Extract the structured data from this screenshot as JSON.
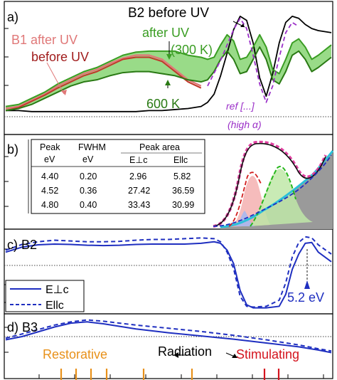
{
  "chart_data": [
    {
      "panel": "a)",
      "type": "line",
      "labels": {
        "b2_before": "B2 before UV",
        "b1_after": "B1 after UV",
        "before": "before UV",
        "after": "after UV",
        "t300": "(300 K)",
        "t600": "600 K",
        "ref": "ref [...]",
        "high_alpha": "(high α)"
      },
      "series": [
        {
          "color": "#000000",
          "x": [
            0,
            0.04,
            0.08,
            0.12,
            0.16,
            0.2,
            0.24,
            0.28,
            0.32,
            0.36,
            0.4,
            0.44,
            0.48,
            0.52,
            0.56,
            0.6,
            0.62,
            0.64,
            0.66,
            0.68,
            0.7,
            0.72,
            0.74,
            0.76,
            0.78,
            0.8,
            0.82,
            0.84,
            0.86,
            0.88,
            0.9,
            0.92,
            0.94,
            0.96,
            1
          ],
          "y": [
            0.06,
            0.06,
            0.05,
            0.05,
            0.05,
            0.05,
            0.05,
            0.05,
            0.05,
            0.05,
            0.05,
            0.06,
            0.06,
            0.07,
            0.08,
            0.1,
            0.14,
            0.22,
            0.4,
            0.62,
            0.85,
            0.98,
            0.94,
            0.72,
            0.38,
            0.2,
            0.42,
            0.72,
            0.92,
            0.98,
            0.96,
            0.9,
            0.86,
            0.84,
            0.82
          ]
        },
        {
          "color": "#e07878",
          "x": [
            0,
            0.04,
            0.08,
            0.12,
            0.16,
            0.2,
            0.24,
            0.28,
            0.32,
            0.36,
            0.4,
            0.44,
            0.48,
            0.52,
            0.56,
            0.6
          ],
          "y": [
            0.08,
            0.1,
            0.16,
            0.22,
            0.3,
            0.36,
            0.42,
            0.46,
            0.52,
            0.57,
            0.6,
            0.6,
            0.56,
            0.46,
            0.36,
            0.3
          ]
        },
        {
          "color": "#c0392b",
          "x": [
            0,
            0.04,
            0.08,
            0.12,
            0.16,
            0.2,
            0.24,
            0.28,
            0.32,
            0.36,
            0.4,
            0.44,
            0.48,
            0.52,
            0.56,
            0.6
          ],
          "y": [
            0.06,
            0.09,
            0.15,
            0.21,
            0.28,
            0.34,
            0.4,
            0.44,
            0.5,
            0.56,
            0.58,
            0.58,
            0.54,
            0.44,
            0.34,
            0.28
          ]
        },
        {
          "color": "#3a9d23",
          "x": [
            0,
            0.04,
            0.08,
            0.12,
            0.16,
            0.2,
            0.24,
            0.28,
            0.32,
            0.36,
            0.4,
            0.44,
            0.48,
            0.52,
            0.56,
            0.6,
            0.62,
            0.64,
            0.66,
            0.68,
            0.7,
            0.72,
            0.74,
            0.76,
            0.78,
            0.8,
            0.82,
            0.84,
            0.86,
            0.88,
            0.9,
            0.92,
            0.94,
            0.96,
            1
          ],
          "y": [
            0.1,
            0.12,
            0.18,
            0.24,
            0.32,
            0.38,
            0.44,
            0.48,
            0.54,
            0.6,
            0.63,
            0.64,
            0.64,
            0.64,
            0.6,
            0.58,
            0.56,
            0.58,
            0.7,
            0.8,
            0.74,
            0.56,
            0.58,
            0.68,
            0.8,
            0.68,
            0.46,
            0.42,
            0.56,
            0.72,
            0.76,
            0.68,
            0.56,
            0.6,
            0.7
          ]
        },
        {
          "color": "#2a7a14",
          "x": [
            0,
            0.04,
            0.08,
            0.12,
            0.16,
            0.2,
            0.24,
            0.28,
            0.32,
            0.36,
            0.4,
            0.44,
            0.48,
            0.52,
            0.56,
            0.6,
            0.62,
            0.64,
            0.66,
            0.68,
            0.7,
            0.72,
            0.74,
            0.76,
            0.78,
            0.8,
            0.82,
            0.84,
            0.86,
            0.88,
            0.9,
            0.92,
            0.94,
            0.96,
            1
          ],
          "y": [
            0.06,
            0.08,
            0.12,
            0.18,
            0.24,
            0.3,
            0.34,
            0.36,
            0.4,
            0.43,
            0.44,
            0.44,
            0.42,
            0.4,
            0.36,
            0.34,
            0.36,
            0.44,
            0.56,
            0.64,
            0.56,
            0.42,
            0.44,
            0.56,
            0.68,
            0.56,
            0.36,
            0.32,
            0.44,
            0.6,
            0.64,
            0.56,
            0.44,
            0.48,
            0.58
          ]
        },
        {
          "color": "#9b30c8",
          "dash": true,
          "x": [
            0.62,
            0.66,
            0.7,
            0.72,
            0.74,
            0.76,
            0.78,
            0.8,
            0.82,
            0.84,
            0.86,
            0.88,
            0.9
          ],
          "y": [
            0.3,
            0.55,
            0.85,
            0.96,
            0.86,
            0.6,
            0.32,
            0.14,
            0.3,
            0.58,
            0.82,
            0.92,
            0.88
          ]
        }
      ]
    },
    {
      "panel": "b)",
      "type": "area",
      "table": {
        "headers": [
          [
            "Peak",
            "eV"
          ],
          [
            "FWHM",
            "eV"
          ],
          [
            "Peak area",
            ""
          ]
        ],
        "subheaders": [
          "E⊥c",
          "Ellc"
        ],
        "rows": [
          [
            "4.40",
            "0.20",
            "2.96",
            "5.82"
          ],
          [
            "4.52",
            "0.36",
            "27.42",
            "36.59"
          ],
          [
            "4.80",
            "0.40",
            "33.43",
            "30.99"
          ]
        ]
      }
    },
    {
      "panel": "c) B2",
      "type": "line",
      "legend": [
        "E⊥c",
        "Ellc"
      ],
      "annotation": "5.2 eV",
      "series": [
        {
          "color": "#1f2fc0",
          "x": [
            0,
            0.05,
            0.1,
            0.15,
            0.2,
            0.25,
            0.3,
            0.35,
            0.4,
            0.45,
            0.5,
            0.55,
            0.6,
            0.64,
            0.66,
            0.68,
            0.7,
            0.72,
            0.74,
            0.76,
            0.8,
            0.84,
            0.86,
            0.88,
            0.9,
            0.92,
            0.94,
            0.96,
            1
          ],
          "y": [
            0.55,
            0.68,
            0.74,
            0.76,
            0.75,
            0.73,
            0.72,
            0.73,
            0.75,
            0.76,
            0.76,
            0.76,
            0.78,
            0.82,
            0.78,
            0.6,
            0.25,
            -0.45,
            -0.82,
            -0.9,
            -0.9,
            -0.86,
            -0.55,
            0.1,
            0.5,
            0.78,
            0.8,
            0.55,
            0.3
          ]
        },
        {
          "color": "#1f2fc0",
          "dash": true,
          "x": [
            0,
            0.05,
            0.1,
            0.15,
            0.2,
            0.25,
            0.3,
            0.35,
            0.4,
            0.45,
            0.5,
            0.55,
            0.6,
            0.64,
            0.66,
            0.68,
            0.7,
            0.72,
            0.74,
            0.76,
            0.8,
            0.84,
            0.86,
            0.88,
            0.9,
            0.92,
            0.94,
            0.96,
            1
          ],
          "y": [
            0.6,
            0.75,
            0.82,
            0.86,
            0.84,
            0.82,
            0.82,
            0.83,
            0.86,
            0.88,
            0.88,
            0.9,
            0.92,
            0.9,
            0.82,
            0.55,
            0.12,
            -0.6,
            -0.86,
            -0.88,
            -0.86,
            -0.7,
            -0.25,
            0.42,
            0.8,
            0.95,
            0.92,
            0.74,
            0.5
          ]
        }
      ]
    },
    {
      "panel": "d) B3",
      "type": "line",
      "series": [
        {
          "color": "#1f2fc0",
          "x": [
            0,
            0.05,
            0.1,
            0.15,
            0.2,
            0.25,
            0.3,
            0.35,
            0.4,
            0.5,
            0.6,
            0.7,
            0.8,
            0.9,
            0.96,
            1
          ],
          "y": [
            0.3,
            0.4,
            0.55,
            0.7,
            0.82,
            0.86,
            0.8,
            0.72,
            0.64,
            0.52,
            0.42,
            0.32,
            0.2,
            0.08,
            -0.02,
            -0.1
          ]
        },
        {
          "color": "#1f2fc0",
          "dash": true,
          "x": [
            0,
            0.05,
            0.1,
            0.15,
            0.2,
            0.25,
            0.3,
            0.35,
            0.4,
            0.5,
            0.6,
            0.7,
            0.8,
            0.9,
            0.96,
            1
          ],
          "y": [
            0.35,
            0.48,
            0.62,
            0.76,
            0.86,
            0.92,
            0.88,
            0.82,
            0.76,
            0.66,
            0.56,
            0.44,
            0.3,
            0.14,
            0.02,
            -0.05
          ]
        }
      ],
      "labels": {
        "restorative": "Restorative",
        "radiation": "Radiation",
        "stimulating": "Stimulating"
      }
    }
  ],
  "colors": {
    "black": "#000000",
    "salmon": "#e07878",
    "red": "#c0392b",
    "green": "#3a9d23",
    "greenBand": "#7fd26a",
    "purple": "#9b30c8",
    "blue": "#1f2fc0",
    "orange": "#e8911a",
    "crimson": "#d4141e"
  }
}
